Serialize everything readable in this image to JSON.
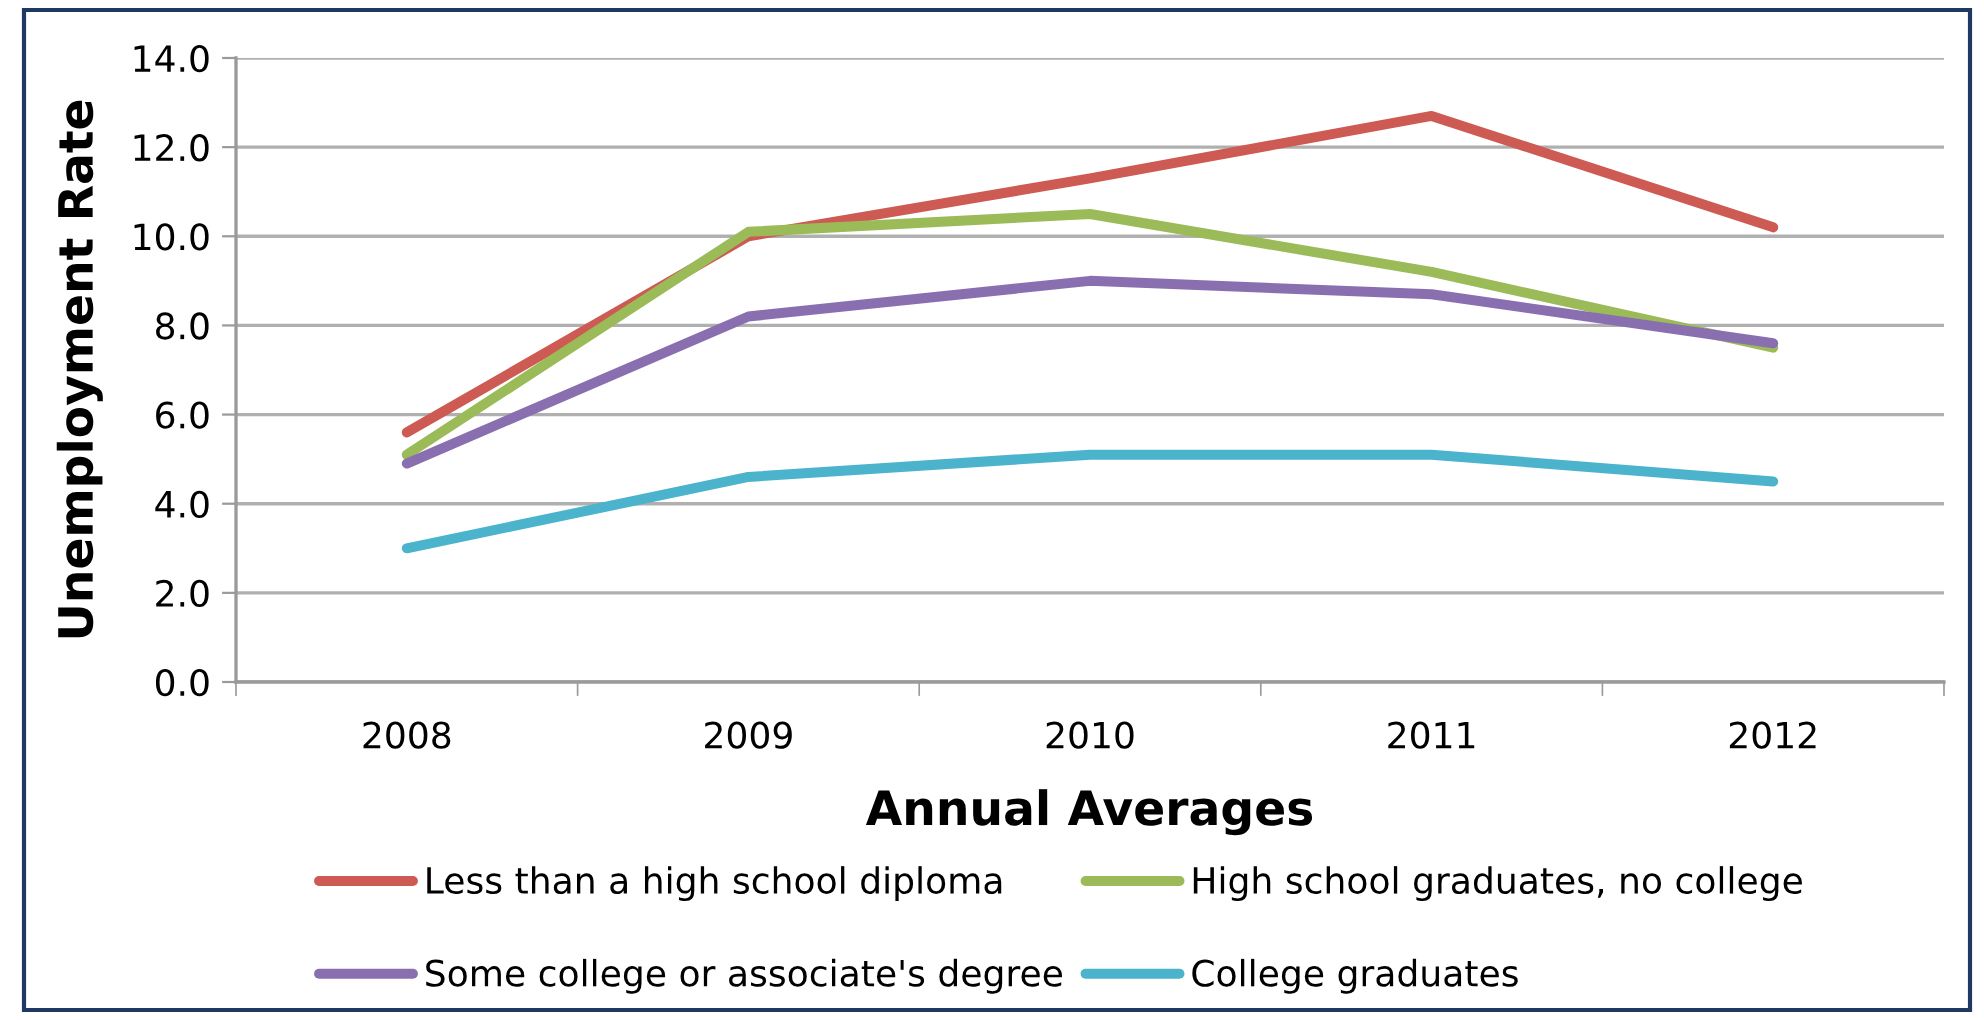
{
  "chart_data": {
    "type": "line",
    "xlabel": "Annual Averages",
    "ylabel": "Unemployment Rate",
    "categories": [
      "2008",
      "2009",
      "2010",
      "2011",
      "2012"
    ],
    "series": [
      {
        "name": "Less than a high school diploma",
        "color": "#cd5b53",
        "values": [
          5.6,
          10.0,
          11.3,
          12.7,
          10.2
        ]
      },
      {
        "name": "High school graduates, no college",
        "color": "#9bbb59",
        "values": [
          5.1,
          10.1,
          10.5,
          9.2,
          7.5
        ]
      },
      {
        "name": "Some college or associate's degree",
        "color": "#8a6fb0",
        "values": [
          4.9,
          8.2,
          9.0,
          8.7,
          7.6
        ]
      },
      {
        "name": "College graduates",
        "color": "#4bb3cc",
        "values": [
          3.0,
          4.6,
          5.1,
          5.1,
          4.5
        ]
      }
    ],
    "ylim": [
      0,
      14
    ],
    "yticks": [
      {
        "value": 0,
        "label": "0.0"
      },
      {
        "value": 2,
        "label": "2.0"
      },
      {
        "value": 4,
        "label": "4.0"
      },
      {
        "value": 6,
        "label": "6.0"
      },
      {
        "value": 8,
        "label": "8.0"
      },
      {
        "value": 10,
        "label": "10.0"
      },
      {
        "value": 12,
        "label": "12.0"
      },
      {
        "value": 14,
        "label": "14.0"
      }
    ],
    "grid": "y",
    "legend": "bottom",
    "marker": "none",
    "line_style": "solid"
  }
}
